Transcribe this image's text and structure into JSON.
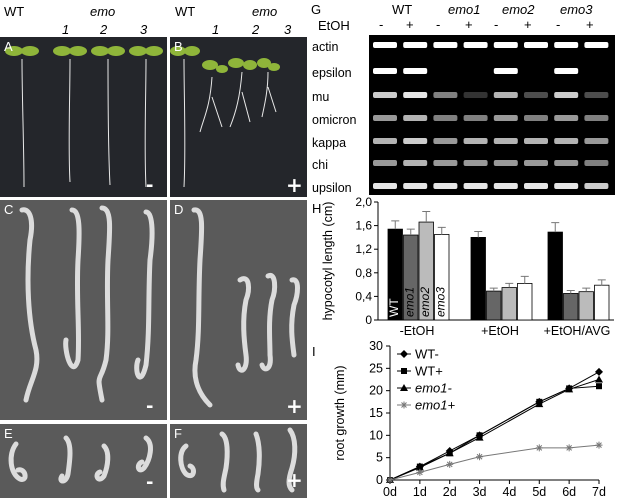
{
  "header_a": {
    "wt": "WT",
    "emo": "emo",
    "n1": "1",
    "n2": "2",
    "n3": "3"
  },
  "header_b": {
    "wt": "WT",
    "emo": "emo",
    "n1": "1",
    "n2": "2",
    "n3": "3"
  },
  "panel_letters": {
    "a": "A",
    "b": "B",
    "c": "C",
    "d": "D",
    "e": "E",
    "f": "F",
    "g": "G",
    "h": "H",
    "i": "I"
  },
  "signs": {
    "a": "-",
    "b": "+",
    "c": "-",
    "d": "+",
    "e": "-",
    "f": "+"
  },
  "gel": {
    "genotypes": [
      "WT",
      "emo1",
      "emo2",
      "emo3"
    ],
    "etoh_label": "EtOH",
    "treatments": [
      "-",
      "+",
      "-",
      "+",
      "-",
      "+",
      "-",
      "+"
    ],
    "genes": [
      "actin",
      "epsilon",
      "mu",
      "omicron",
      "kappa",
      "chi",
      "upsilon"
    ]
  },
  "chart_data": [
    {
      "type": "bar",
      "ylabel": "hypocotyl length (cm)",
      "ylim": [
        0,
        2.0
      ],
      "yticks": [
        "0",
        "0,4",
        "0,8",
        "1,2",
        "1,6",
        "2,0"
      ],
      "categories": [
        "-EtOH",
        "+EtOH",
        "+EtOH/AVG"
      ],
      "series": [
        {
          "name": "WT",
          "color": "#000000",
          "values": [
            1.54,
            1.4,
            1.49
          ],
          "errors": [
            0.14,
            0.1,
            0.16
          ]
        },
        {
          "name": "emo1",
          "color": "#666666",
          "values": [
            1.44,
            0.49,
            0.45
          ],
          "errors": [
            0.1,
            0.05,
            0.05
          ]
        },
        {
          "name": "emo2",
          "color": "#bbbbbb",
          "values": [
            1.66,
            0.55,
            0.48
          ],
          "errors": [
            0.18,
            0.07,
            0.06
          ]
        },
        {
          "name": "emo3",
          "color": "#ffffff",
          "values": [
            1.45,
            0.62,
            0.59
          ],
          "errors": [
            0.12,
            0.12,
            0.09
          ]
        }
      ]
    },
    {
      "type": "line",
      "ylabel": "root growth (mm)",
      "ylim": [
        0,
        30
      ],
      "yticks": [
        "0",
        "5",
        "10",
        "15",
        "20",
        "25",
        "30"
      ],
      "x": [
        "0d",
        "1d",
        "2d",
        "3d",
        "4d",
        "5d",
        "6d",
        "7d"
      ],
      "series": [
        {
          "name": "WT-",
          "marker": "diamond",
          "points": [
            [
              0,
              0
            ],
            [
              1,
              3
            ],
            [
              2,
              6.5
            ],
            [
              3,
              10
            ],
            [
              5,
              17.5
            ],
            [
              6,
              20.5
            ],
            [
              7,
              24.2
            ]
          ]
        },
        {
          "name": "WT+",
          "marker": "square",
          "points": [
            [
              0,
              0
            ],
            [
              1,
              3
            ],
            [
              2,
              6
            ],
            [
              3,
              10
            ],
            [
              5,
              17.5
            ],
            [
              6,
              20.5
            ],
            [
              7,
              21
            ]
          ]
        },
        {
          "name": "emo1-",
          "marker": "triangle",
          "points": [
            [
              0,
              0
            ],
            [
              1,
              2.8
            ],
            [
              2,
              6
            ],
            [
              3,
              9.5
            ],
            [
              5,
              17
            ],
            [
              6,
              20.3
            ],
            [
              7,
              22.5
            ]
          ]
        },
        {
          "name": "emo1+",
          "marker": "star",
          "points": [
            [
              0,
              0
            ],
            [
              1,
              1.7
            ],
            [
              2,
              3.5
            ],
            [
              3,
              5.2
            ],
            [
              5,
              7.2
            ],
            [
              6,
              7.2
            ],
            [
              7,
              7.8
            ]
          ]
        }
      ]
    }
  ]
}
